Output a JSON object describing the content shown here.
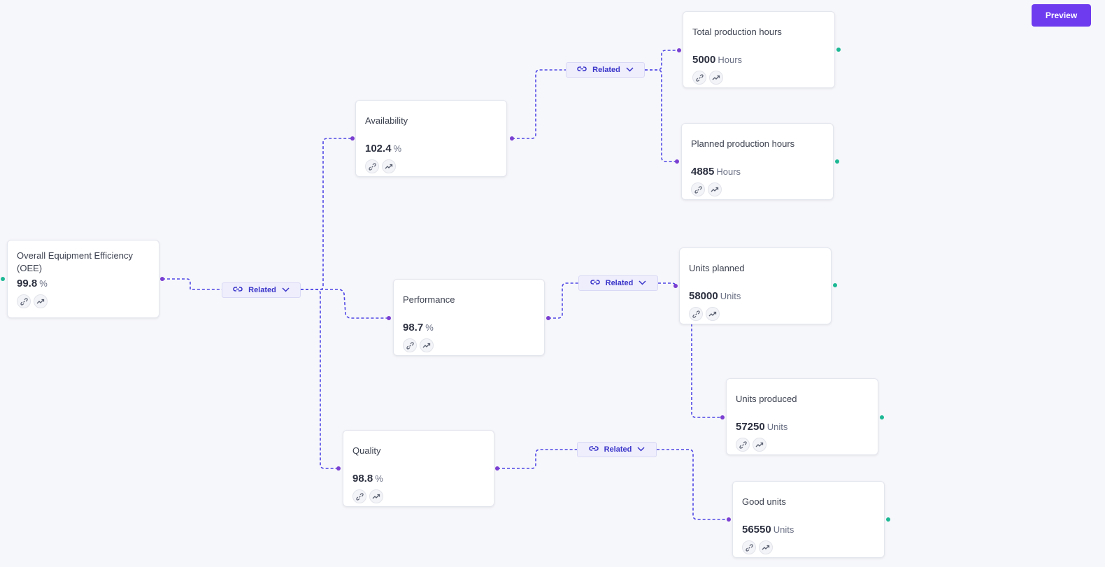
{
  "toolbar": {
    "preview_label": "Preview"
  },
  "colors": {
    "edge": "#4f46e5",
    "accent": "#6e3bef",
    "output_dot": "#7b3fd1",
    "leaf_dot": "#1db894"
  },
  "related_label": "Related",
  "nodes": [
    {
      "title": "Overall Equipment Efficiency (OEE)",
      "value": "99.8",
      "unit": "%"
    },
    {
      "title": "Availability",
      "value": "102.4",
      "unit": "%"
    },
    {
      "title": "Performance",
      "value": "98.7",
      "unit": "%"
    },
    {
      "title": "Quality",
      "value": "98.8",
      "unit": "%"
    },
    {
      "title": "Total production hours",
      "value": "5000",
      "unit": "Hours"
    },
    {
      "title": "Planned production hours",
      "value": "4885",
      "unit": "Hours"
    },
    {
      "title": "Units planned",
      "value": "58000",
      "unit": "Units"
    },
    {
      "title": "Units produced",
      "value": "57250",
      "unit": "Units"
    },
    {
      "title": "Good units",
      "value": "56550",
      "unit": "Units"
    }
  ]
}
